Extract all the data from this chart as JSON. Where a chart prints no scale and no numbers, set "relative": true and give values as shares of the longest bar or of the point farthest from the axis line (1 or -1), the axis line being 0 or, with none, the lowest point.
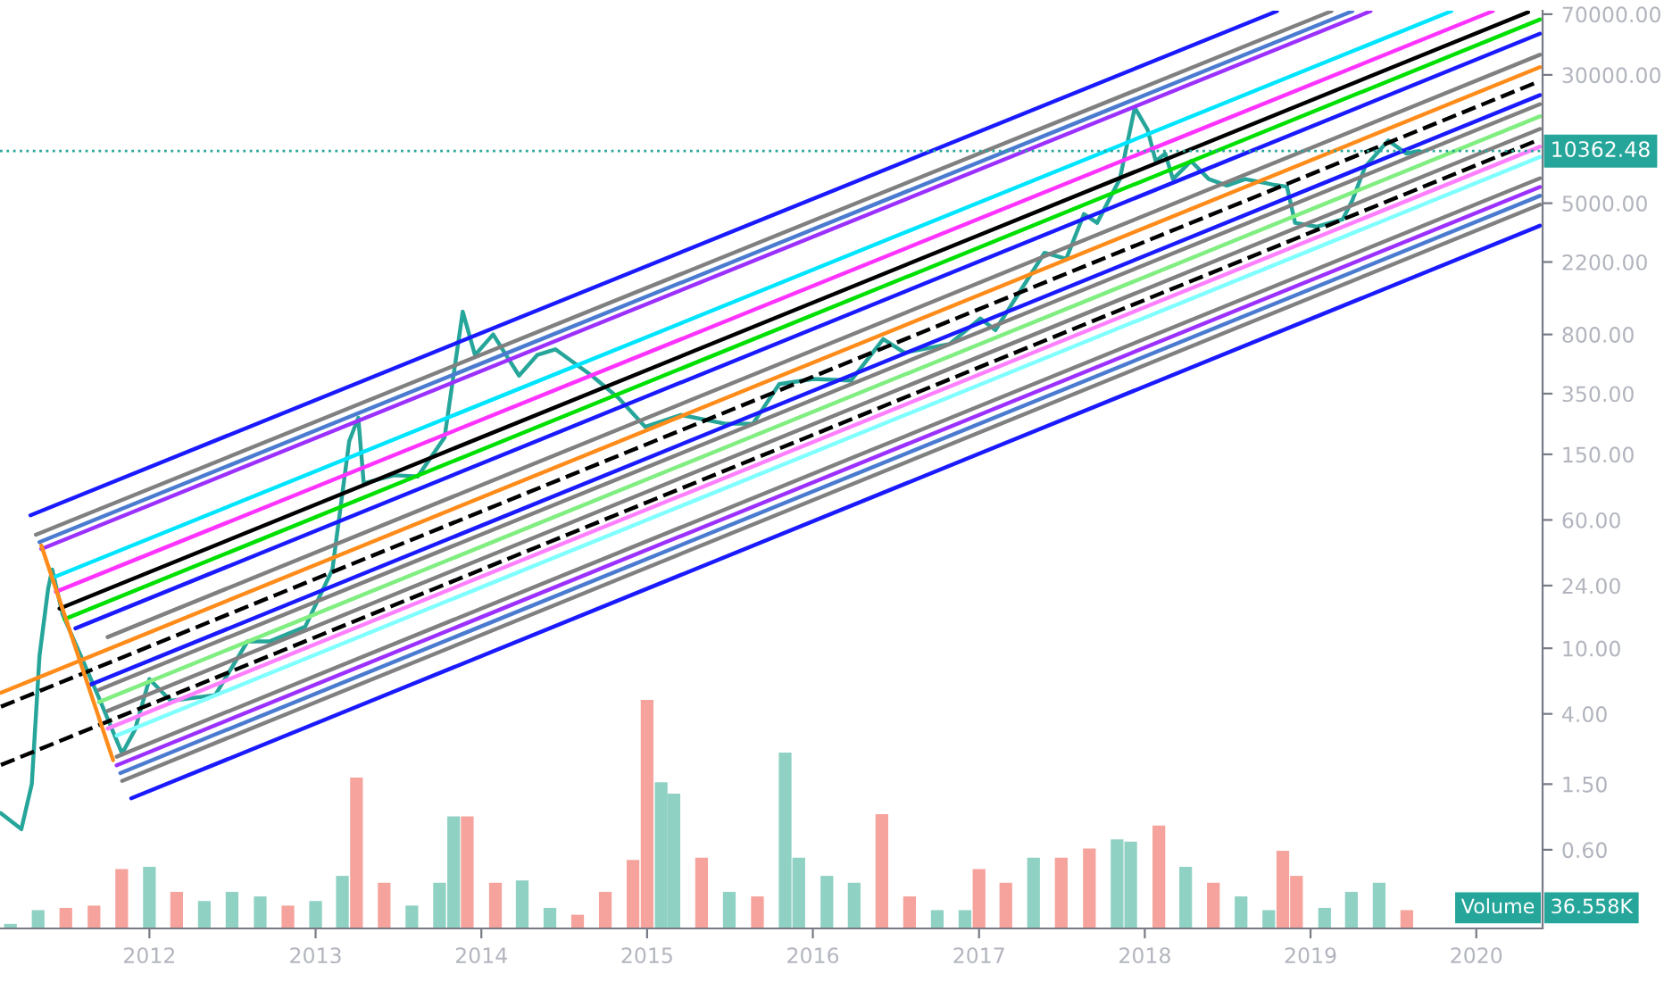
{
  "chart_data": [
    {
      "type": "line",
      "log": "y",
      "grid": false,
      "legend": false,
      "xlim": [
        "2011-02-06",
        "2020-05-26"
      ],
      "xticks": [
        {
          "value": "2012-01-01",
          "label": "2012"
        },
        {
          "value": "2013-01-01",
          "label": "2013"
        },
        {
          "value": "2014-01-01",
          "label": "2014"
        },
        {
          "value": "2015-01-01",
          "label": "2015"
        },
        {
          "value": "2016-01-01",
          "label": "2016"
        },
        {
          "value": "2017-01-01",
          "label": "2017"
        },
        {
          "value": "2018-01-01",
          "label": "2018"
        },
        {
          "value": "2019-01-01",
          "label": "2019"
        },
        {
          "value": "2020-01-01",
          "label": "2020"
        }
      ],
      "ylim": [
        0.2,
        73500
      ],
      "yticks": [
        {
          "value": 0.6,
          "label": "0.60"
        },
        {
          "value": 1.5,
          "label": "1.50"
        },
        {
          "value": 4,
          "label": "4.00"
        },
        {
          "value": 10,
          "label": "10.00"
        },
        {
          "value": 24,
          "label": "24.00"
        },
        {
          "value": 60,
          "label": "60.00"
        },
        {
          "value": 150,
          "label": "150.00"
        },
        {
          "value": 350,
          "label": "350.00"
        },
        {
          "value": 800,
          "label": "800.00"
        },
        {
          "value": 2200,
          "label": "2200.00"
        },
        {
          "value": 5000,
          "label": "5000.00"
        },
        {
          "value": 30000,
          "label": "30000.00"
        },
        {
          "value": 70000,
          "label": "70000.00"
        }
      ],
      "ref_lines": [
        {
          "axis": "y",
          "value": 10362.48,
          "label": "10362.48",
          "color": "#26a69a",
          "line_style": "dotted"
        }
      ],
      "series": [
        {
          "color": "#26a69a",
          "line_style": "solid",
          "x": [
            "2011-02-08",
            "2011-03-25",
            "2011-04-17",
            "2011-05-04",
            "2011-05-23",
            "2011-06-01",
            "2011-06-24",
            "2011-08-03",
            "2011-09-12",
            "2011-11-02",
            "2011-11-30",
            "2012-01-01",
            "2012-02-17",
            "2012-05-25",
            "2012-08-04",
            "2012-09-21",
            "2012-12-09",
            "2013-02-07",
            "2013-03-16",
            "2013-04-05",
            "2013-04-17",
            "2013-06-23",
            "2013-08-14",
            "2013-10-12",
            "2013-11-21",
            "2013-12-18",
            "2014-01-27",
            "2014-03-25",
            "2014-05-04",
            "2014-06-13",
            "2014-09-01",
            "2014-10-30",
            "2014-12-28",
            "2015-03-16",
            "2015-06-22",
            "2015-08-22",
            "2015-10-19",
            "2016-01-03",
            "2016-03-25",
            "2016-06-04",
            "2016-07-21",
            "2016-10-28",
            "2017-01-04",
            "2017-02-06",
            "2017-05-25",
            "2017-07-12",
            "2017-08-20",
            "2017-09-18",
            "2017-11-07",
            "2017-12-10",
            "2018-01-07",
            "2018-01-25",
            "2018-02-15",
            "2018-03-04",
            "2018-04-13",
            "2018-05-22",
            "2018-07-01",
            "2018-08-10",
            "2018-10-09",
            "2018-11-10",
            "2018-11-28",
            "2019-01-15",
            "2019-03-13",
            "2019-04-03",
            "2019-05-01",
            "2019-06-21",
            "2019-07-31",
            "2019-08-28"
          ],
          "values": [
            1.0,
            0.8,
            1.5,
            9,
            23,
            30,
            16,
            9,
            5,
            2.3,
            3.2,
            6.5,
            4.8,
            5.2,
            11,
            11,
            13.5,
            30,
            180,
            250,
            100,
            112,
            110,
            190,
            1100,
            600,
            800,
            450,
            600,
            650,
            450,
            330,
            220,
            260,
            230,
            230,
            400,
            430,
            420,
            750,
            620,
            700,
            1000,
            850,
            2500,
            2300,
            4300,
            3800,
            7000,
            19000,
            14000,
            9000,
            10000,
            7000,
            9000,
            7000,
            6400,
            7000,
            6500,
            6300,
            3800,
            3600,
            4000,
            5200,
            8300,
            12000,
            10000,
            10362.48
          ]
        },
        {
          "color": "#1a1aff",
          "line_style": "solid",
          "x": [
            "2011-04-14",
            "2018-10-19"
          ],
          "values": [
            64,
            73000
          ]
        },
        {
          "color": "#808080",
          "line_style": "solid",
          "x": [
            "2011-04-26",
            "2019-02-16"
          ],
          "values": [
            48.8,
            73000
          ]
        },
        {
          "color": "#4a7bd0",
          "line_style": "solid",
          "x": [
            "2011-05-04",
            "2019-04-03"
          ],
          "values": [
            44,
            73000
          ]
        },
        {
          "color": "#9b30ff",
          "line_style": "solid",
          "x": [
            "2011-05-08",
            "2019-05-13"
          ],
          "values": [
            40,
            73000
          ]
        },
        {
          "color": "#00e5ff",
          "line_style": "solid",
          "x": [
            "2011-06-05",
            "2019-11-07"
          ],
          "values": [
            27,
            73000
          ]
        },
        {
          "color": "#ff33ff",
          "line_style": "solid",
          "x": [
            "2011-06-09",
            "2020-02-06"
          ],
          "values": [
            22,
            73000
          ]
        },
        {
          "color": "#000000",
          "line_style": "solid",
          "x": [
            "2011-06-17",
            "2020-04-24"
          ],
          "values": [
            17.4,
            72000
          ]
        },
        {
          "color": "#00e000",
          "line_style": "solid",
          "x": [
            "2011-06-28",
            "2020-05-20"
          ],
          "values": [
            15,
            65000
          ]
        },
        {
          "color": "#1a1aff",
          "line_style": "solid",
          "x": [
            "2011-07-22",
            "2020-05-20"
          ],
          "values": [
            13.2,
            53300
          ]
        },
        {
          "color": "#808080",
          "line_style": "solid",
          "x": [
            "2011-10-01",
            "2020-05-20"
          ],
          "values": [
            11.7,
            39700
          ]
        },
        {
          "color": "#ff8c1a",
          "line_style": "solid",
          "x": [
            "2011-02-08",
            "2020-05-20"
          ],
          "values": [
            5.37,
            33400
          ]
        },
        {
          "color": "#000000",
          "line_style": "dashed",
          "x": [
            "2011-02-08",
            "2020-05-20"
          ],
          "values": [
            4.42,
            27500
          ]
        },
        {
          "color": "#1a1aff",
          "line_style": "solid",
          "x": [
            "2011-08-23",
            "2020-05-20"
          ],
          "values": [
            6.0,
            22600
          ]
        },
        {
          "color": "#808080",
          "line_style": "solid",
          "x": [
            "2011-09-12",
            "2020-05-20"
          ],
          "values": [
            5.6,
            19900
          ]
        },
        {
          "color": "#80ee80",
          "line_style": "solid",
          "x": [
            "2011-09-12",
            "2020-05-20"
          ],
          "values": [
            4.72,
            16800
          ]
        },
        {
          "color": "#808080",
          "line_style": "solid",
          "x": [
            "2011-10-01",
            "2020-05-20"
          ],
          "values": [
            4.17,
            14100
          ]
        },
        {
          "color": "#000000",
          "line_style": "dashed",
          "x": [
            "2011-02-08",
            "2020-05-20"
          ],
          "values": [
            1.96,
            12200
          ]
        },
        {
          "color": "#ff80ff",
          "line_style": "solid",
          "x": [
            "2011-10-01",
            "2020-05-20"
          ],
          "values": [
            3.26,
            11000
          ]
        },
        {
          "color": "#80ffff",
          "line_style": "solid",
          "x": [
            "2011-10-21",
            "2020-05-20"
          ],
          "values": [
            2.96,
            9530
          ]
        },
        {
          "color": "#808080",
          "line_style": "solid",
          "x": [
            "2011-10-21",
            "2020-05-20"
          ],
          "values": [
            2.2,
            7080
          ]
        },
        {
          "color": "#9b30ff",
          "line_style": "solid",
          "x": [
            "2011-10-21",
            "2020-05-20"
          ],
          "values": [
            1.95,
            6270
          ]
        },
        {
          "color": "#4a7bd0",
          "line_style": "solid",
          "x": [
            "2011-10-29",
            "2020-05-20"
          ],
          "values": [
            1.75,
            5540
          ]
        },
        {
          "color": "#808080",
          "line_style": "solid",
          "x": [
            "2011-11-02",
            "2020-05-20"
          ],
          "values": [
            1.57,
            4900
          ]
        },
        {
          "color": "#1a1aff",
          "line_style": "solid",
          "x": [
            "2011-11-22",
            "2020-05-20"
          ],
          "values": [
            1.23,
            3650
          ]
        },
        {
          "color": "#ff8c1a",
          "line_style": "solid",
          "x": [
            "2011-05-08",
            "2011-10-13"
          ],
          "values": [
            42,
            2.1
          ]
        }
      ]
    },
    {
      "type": "bar",
      "relative": true,
      "tick_labels": false,
      "xlim": [
        "2011-02-06",
        "2020-05-26"
      ],
      "annotations": [
        "Volume",
        "36.558K"
      ],
      "x": [
        "2011-03",
        "2011-05",
        "2011-07",
        "2011-09",
        "2011-11",
        "2012-01",
        "2012-03",
        "2012-05",
        "2012-07",
        "2012-09",
        "2012-11",
        "2013-01",
        "2013-03",
        "2013-04",
        "2013-06",
        "2013-08",
        "2013-10",
        "2013-11",
        "2013-12",
        "2014-02",
        "2014-04",
        "2014-06",
        "2014-08",
        "2014-10",
        "2014-12",
        "2015-01",
        "2015-02",
        "2015-03",
        "2015-05",
        "2015-07",
        "2015-09",
        "2015-11",
        "2015-12",
        "2016-02",
        "2016-04",
        "2016-06",
        "2016-08",
        "2016-10",
        "2016-12",
        "2017-01",
        "2017-03",
        "2017-05",
        "2017-07",
        "2017-09",
        "2017-11",
        "2017-12",
        "2018-02",
        "2018-04",
        "2018-06",
        "2018-08",
        "2018-10",
        "2018-11",
        "2018-12",
        "2019-02",
        "2019-04",
        "2019-06",
        "2019-08"
      ],
      "values": [
        0.02,
        0.08,
        0.09,
        0.1,
        0.26,
        0.27,
        0.16,
        0.12,
        0.16,
        0.14,
        0.1,
        0.12,
        0.23,
        0.66,
        0.2,
        0.1,
        0.2,
        0.49,
        0.49,
        0.2,
        0.21,
        0.09,
        0.06,
        0.16,
        0.3,
        1,
        0.64,
        0.59,
        0.31,
        0.16,
        0.14,
        0.77,
        0.31,
        0.23,
        0.2,
        0.5,
        0.14,
        0.08,
        0.08,
        0.26,
        0.2,
        0.31,
        0.31,
        0.35,
        0.39,
        0.38,
        0.45,
        0.27,
        0.2,
        0.14,
        0.08,
        0.34,
        0.23,
        0.09,
        0.16,
        0.2,
        0.08
      ],
      "colors": [
        "#8fd1c3",
        "#8fd1c3",
        "#f5a39c",
        "#f5a39c",
        "#f5a39c",
        "#8fd1c3",
        "#f5a39c",
        "#8fd1c3",
        "#8fd1c3",
        "#8fd1c3",
        "#f5a39c",
        "#8fd1c3",
        "#8fd1c3",
        "#f5a39c",
        "#f5a39c",
        "#8fd1c3",
        "#8fd1c3",
        "#8fd1c3",
        "#f5a39c",
        "#f5a39c",
        "#8fd1c3",
        "#8fd1c3",
        "#f5a39c",
        "#f5a39c",
        "#f5a39c",
        "#f5a39c",
        "#8fd1c3",
        "#8fd1c3",
        "#f5a39c",
        "#8fd1c3",
        "#f5a39c",
        "#8fd1c3",
        "#8fd1c3",
        "#8fd1c3",
        "#8fd1c3",
        "#f5a39c",
        "#f5a39c",
        "#8fd1c3",
        "#8fd1c3",
        "#f5a39c",
        "#f5a39c",
        "#8fd1c3",
        "#f5a39c",
        "#f5a39c",
        "#8fd1c3",
        "#8fd1c3",
        "#f5a39c",
        "#8fd1c3",
        "#f5a39c",
        "#8fd1c3",
        "#8fd1c3",
        "#f5a39c",
        "#f5a39c",
        "#8fd1c3",
        "#8fd1c3",
        "#8fd1c3",
        "#f5a39c"
      ]
    }
  ]
}
